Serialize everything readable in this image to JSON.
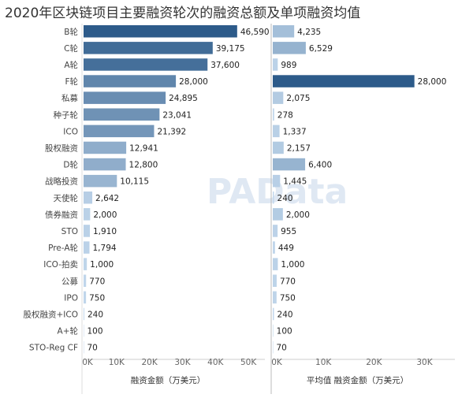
{
  "title": "2020年区块链项目主要融资轮次的融资总额及单项融资均值",
  "watermark": "PAData",
  "chart_data": {
    "type": "bar",
    "orientation": "horizontal",
    "categories": [
      "B轮",
      "C轮",
      "A轮",
      "F轮",
      "私募",
      "种子轮",
      "ICO",
      "股权融资",
      "D轮",
      "战略投资",
      "天使轮",
      "债券融资",
      "STO",
      "Pre-A轮",
      "ICO-拍卖",
      "公募",
      "IPO",
      "股权融资+ICO",
      "A+轮",
      "STO-Reg CF"
    ],
    "panels": [
      {
        "xlabel": "融资金额（万美元）",
        "xlim": [
          0,
          55000
        ],
        "ticks": [
          0,
          10000,
          20000,
          30000,
          40000,
          50000
        ],
        "tick_labels": [
          "0K",
          "10K",
          "20K",
          "30K",
          "40K",
          "50K"
        ],
        "values": [
          46590,
          39175,
          37600,
          28000,
          24895,
          23041,
          21392,
          12941,
          12800,
          10115,
          2642,
          2000,
          1910,
          1794,
          1000,
          770,
          750,
          240,
          100,
          70
        ],
        "value_labels": [
          "46,590",
          "39,175",
          "37,600",
          "28,000",
          "24,895",
          "23,041",
          "21,392",
          "12,941",
          "12,800",
          "10,115",
          "2,642",
          "2,000",
          "1,910",
          "1,794",
          "1,000",
          "770",
          "750",
          "240",
          "100",
          "70"
        ]
      },
      {
        "xlabel": "平均值 融资金额（万美元）",
        "xlim": [
          0,
          36000
        ],
        "ticks": [
          0,
          10000,
          20000,
          30000
        ],
        "tick_labels": [
          "0K",
          "10K",
          "20K",
          "30K"
        ],
        "values": [
          4235,
          6529,
          989,
          28000,
          2075,
          278,
          1337,
          2157,
          6400,
          1445,
          240,
          2000,
          955,
          449,
          1000,
          770,
          750,
          240,
          100,
          70
        ],
        "value_labels": [
          "4,235",
          "6,529",
          "989",
          "28,000",
          "2,075",
          "278",
          "1,337",
          "2,157",
          "6,400",
          "1,445",
          "240",
          "2,000",
          "955",
          "449",
          "1,000",
          "770",
          "750",
          "240",
          "100",
          "70"
        ]
      }
    ],
    "color_scale": [
      "#c6dbef",
      "#2d5b8a"
    ],
    "grid": false,
    "legend": "none"
  }
}
